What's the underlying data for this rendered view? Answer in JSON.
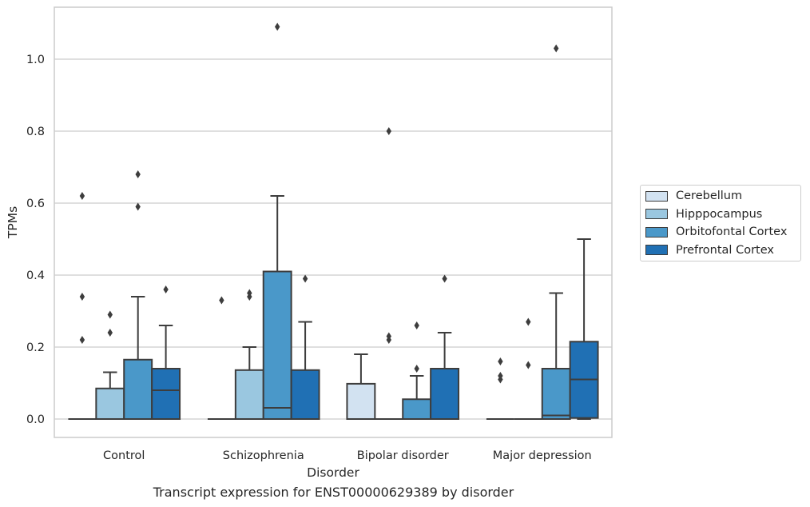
{
  "chart_data": {
    "type": "box",
    "title": "Transcript expression for ENST00000629389 by disorder",
    "xlabel": "Disorder",
    "ylabel": "TPMs",
    "ylim": [
      -0.05,
      1.145
    ],
    "yticks": [
      0.0,
      0.2,
      0.4,
      0.6,
      0.8,
      1.0
    ],
    "ytick_labels": [
      "0.0",
      "0.2",
      "0.4",
      "0.6",
      "0.8",
      "1.0"
    ],
    "categories": [
      "Control",
      "Schizophrenia",
      "Bipolar disorder",
      "Major depression"
    ],
    "grid": "horizontal",
    "legend_position": "right",
    "series": [
      {
        "name": "Cerebellum",
        "color": "#d2e2f1",
        "boxes": [
          {
            "q1": 0,
            "median": 0,
            "q3": 0,
            "whisker_low": 0,
            "whisker_high": 0,
            "outliers": [
              0.22,
              0.34,
              0.62
            ]
          },
          {
            "q1": 0,
            "median": 0,
            "q3": 0,
            "whisker_low": 0,
            "whisker_high": 0,
            "outliers": [
              0.33
            ]
          },
          {
            "q1": 0,
            "median": 0,
            "q3": 0.098,
            "whisker_low": 0,
            "whisker_high": 0.18,
            "outliers": []
          },
          {
            "q1": 0,
            "median": 0,
            "q3": 0,
            "whisker_low": 0,
            "whisker_high": 0,
            "outliers": [
              0.11,
              0.12,
              0.16
            ]
          }
        ]
      },
      {
        "name": "Hipppocampus",
        "color": "#9ac7e0",
        "boxes": [
          {
            "q1": 0,
            "median": 0,
            "q3": 0.085,
            "whisker_low": 0,
            "whisker_high": 0.13,
            "outliers": [
              0.24,
              0.29
            ]
          },
          {
            "q1": 0,
            "median": 0,
            "q3": 0.136,
            "whisker_low": 0,
            "whisker_high": 0.2,
            "outliers": [
              0.34,
              0.35
            ]
          },
          {
            "q1": 0,
            "median": 0,
            "q3": 0,
            "whisker_low": 0,
            "whisker_high": 0,
            "outliers": [
              0.22,
              0.23,
              0.8
            ]
          },
          {
            "q1": 0,
            "median": 0,
            "q3": 0,
            "whisker_low": 0,
            "whisker_high": 0,
            "outliers": [
              0.15,
              0.27
            ]
          }
        ]
      },
      {
        "name": "Orbitofontal Cortex",
        "color": "#4a98c9",
        "boxes": [
          {
            "q1": 0,
            "median": 0,
            "q3": 0.165,
            "whisker_low": 0,
            "whisker_high": 0.34,
            "outliers": [
              0.59,
              0.68
            ]
          },
          {
            "q1": 0,
            "median": 0.031,
            "q3": 0.41,
            "whisker_low": 0,
            "whisker_high": 0.62,
            "outliers": [
              1.09
            ]
          },
          {
            "q1": 0,
            "median": 0,
            "q3": 0.055,
            "whisker_low": 0,
            "whisker_high": 0.12,
            "outliers": [
              0.14,
              0.26
            ]
          },
          {
            "q1": 0,
            "median": 0.01,
            "q3": 0.14,
            "whisker_low": 0,
            "whisker_high": 0.35,
            "outliers": [
              1.03
            ]
          }
        ]
      },
      {
        "name": "Prefrontal Cortex",
        "color": "#2070b4",
        "boxes": [
          {
            "q1": 0,
            "median": 0.08,
            "q3": 0.14,
            "whisker_low": 0,
            "whisker_high": 0.26,
            "outliers": [
              0.36
            ]
          },
          {
            "q1": 0,
            "median": 0,
            "q3": 0.136,
            "whisker_low": 0,
            "whisker_high": 0.27,
            "outliers": [
              0.39
            ]
          },
          {
            "q1": 0,
            "median": 0,
            "q3": 0.14,
            "whisker_low": 0,
            "whisker_high": 0.24,
            "outliers": [
              0.39
            ]
          },
          {
            "q1": 0.003,
            "median": 0.11,
            "q3": 0.215,
            "whisker_low": 0,
            "whisker_high": 0.5,
            "outliers": []
          }
        ]
      }
    ]
  }
}
